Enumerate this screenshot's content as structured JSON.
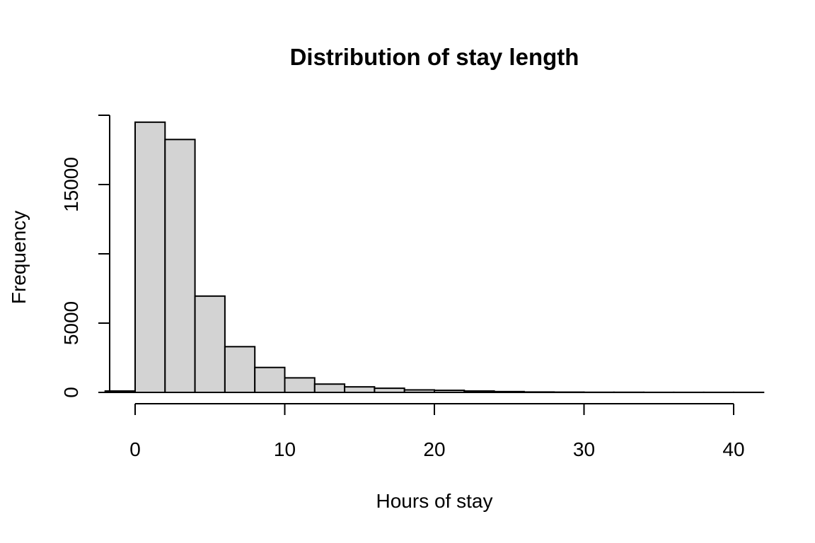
{
  "chart_data": {
    "type": "bar",
    "title": "Distribution of stay length",
    "xlabel": "Hours of stay",
    "ylabel": "Frequency",
    "bins": [
      {
        "from": -2,
        "to": 0,
        "count": 100
      },
      {
        "from": 0,
        "to": 2,
        "count": 19500
      },
      {
        "from": 2,
        "to": 4,
        "count": 18250
      },
      {
        "from": 4,
        "to": 6,
        "count": 6950
      },
      {
        "from": 6,
        "to": 8,
        "count": 3300
      },
      {
        "from": 8,
        "to": 10,
        "count": 1800
      },
      {
        "from": 10,
        "to": 12,
        "count": 1050
      },
      {
        "from": 12,
        "to": 14,
        "count": 600
      },
      {
        "from": 14,
        "to": 16,
        "count": 400
      },
      {
        "from": 16,
        "to": 18,
        "count": 300
      },
      {
        "from": 18,
        "to": 20,
        "count": 180
      },
      {
        "from": 20,
        "to": 22,
        "count": 150
      },
      {
        "from": 22,
        "to": 24,
        "count": 100
      },
      {
        "from": 24,
        "to": 26,
        "count": 60
      },
      {
        "from": 26,
        "to": 28,
        "count": 30
      },
      {
        "from": 28,
        "to": 30,
        "count": 20
      },
      {
        "from": 30,
        "to": 32,
        "count": 10
      },
      {
        "from": 32,
        "to": 34,
        "count": 10
      },
      {
        "from": 34,
        "to": 36,
        "count": 5
      },
      {
        "from": 36,
        "to": 38,
        "count": 5
      },
      {
        "from": 38,
        "to": 40,
        "count": 5
      },
      {
        "from": 40,
        "to": 42,
        "count": 5
      }
    ],
    "xticks": [
      0,
      10,
      20,
      30,
      40
    ],
    "yticks": [
      0,
      5000,
      10000,
      15000,
      20000
    ],
    "ytick_labels": [
      "0",
      "5000",
      "",
      "15000",
      ""
    ],
    "xlim": [
      -2,
      42
    ],
    "ylim": [
      0,
      20000
    ],
    "bar_color": "#d3d3d3",
    "grid": false,
    "legend": false
  }
}
